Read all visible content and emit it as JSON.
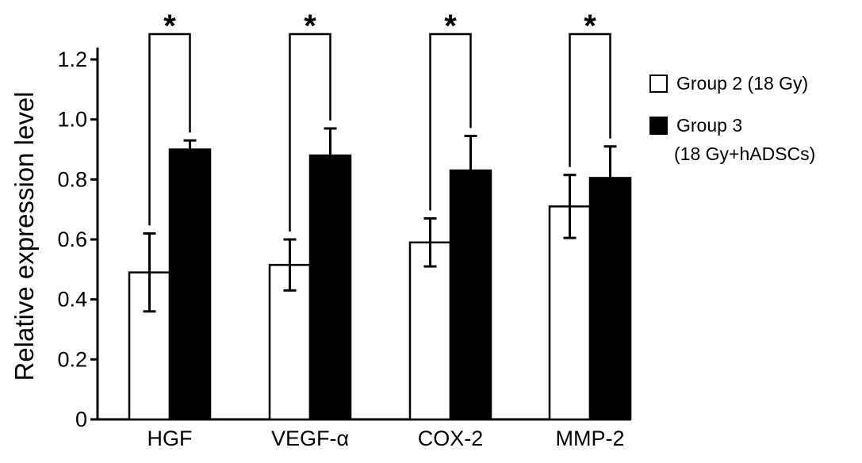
{
  "chart_data": {
    "type": "bar",
    "title": "",
    "xlabel": "",
    "ylabel": "Relative expression level",
    "ylim": [
      0,
      1.2
    ],
    "yticks": [
      "0",
      "0.2",
      "0.4",
      "0.6",
      "0.8",
      "1.0",
      "1.2"
    ],
    "grid": false,
    "legend_position": "right",
    "categories": [
      "HGF",
      "VEGF-α",
      "COX-2",
      "MMP-2"
    ],
    "series": [
      {
        "name": "Group 2 (18 Gy)",
        "color": "#ffffff",
        "values": [
          0.49,
          0.515,
          0.59,
          0.71
        ],
        "errors": [
          0.13,
          0.085,
          0.08,
          0.105
        ]
      },
      {
        "name": "Group 3 (18 Gy+hADSCs)",
        "color": "#000000",
        "values": [
          0.9,
          0.88,
          0.83,
          0.805
        ],
        "errors": [
          0.03,
          0.09,
          0.115,
          0.105
        ]
      }
    ],
    "annotations": [
      "*",
      "*",
      "*",
      "*"
    ]
  },
  "legend": {
    "items": [
      {
        "lines": [
          "Group 2 (18 Gy)"
        ],
        "fill": "#ffffff"
      },
      {
        "lines": [
          "Group 3",
          "(18 Gy+hADSCs)"
        ],
        "fill": "#000000"
      }
    ]
  }
}
